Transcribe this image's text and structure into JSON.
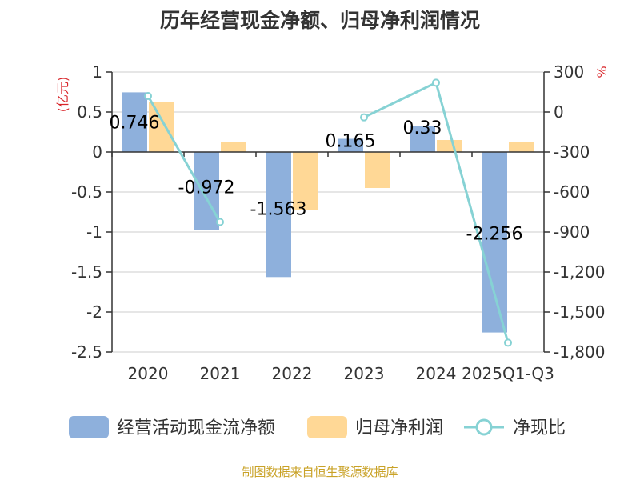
{
  "colors": {
    "cash_flow": "#8eb0dc",
    "net_profit": "#ffd896",
    "ratio": "#86d2d4",
    "unit": "#d9262b",
    "source": "#c9a227",
    "grid": "#cccccc",
    "axis": "#333333"
  },
  "chart_data": {
    "type": "bar",
    "title": "历年经营现金净额、归母净利润情况",
    "categories": [
      "2020",
      "2021",
      "2022",
      "2023",
      "2024",
      "2025Q1-Q3"
    ],
    "series": [
      {
        "name": "经营活动现金流净额",
        "axis": "left",
        "kind": "bar",
        "values": [
          0.746,
          -0.972,
          -1.563,
          0.165,
          0.33,
          -2.256
        ],
        "labels": [
          "0.746",
          "-0.972",
          "-1.563",
          "0.165",
          "0.33",
          "-2.256"
        ]
      },
      {
        "name": "归母净利润",
        "axis": "left",
        "kind": "bar",
        "values": [
          0.62,
          0.12,
          -0.72,
          -0.45,
          0.15,
          0.13
        ]
      },
      {
        "name": "净现比",
        "axis": "right",
        "kind": "line",
        "values": [
          120,
          -825,
          null,
          -40,
          220,
          -1730
        ]
      }
    ],
    "y_left": {
      "unit": "(亿元)",
      "min": -2.5,
      "max": 1,
      "ticks": [
        "1",
        "0.5",
        "0",
        "-0.5",
        "-1",
        "-1.5",
        "-2",
        "-2.5"
      ]
    },
    "y_right": {
      "unit": "%",
      "min": -1800,
      "max": 300,
      "ticks": [
        "300",
        "0",
        "-300",
        "-600",
        "-900",
        "-1,200",
        "-1,500",
        "-1,800"
      ]
    },
    "legend": [
      "经营活动现金流净额",
      "归母净利润",
      "净现比"
    ]
  },
  "footer": {
    "source": "制图数据来自恒生聚源数据库"
  }
}
